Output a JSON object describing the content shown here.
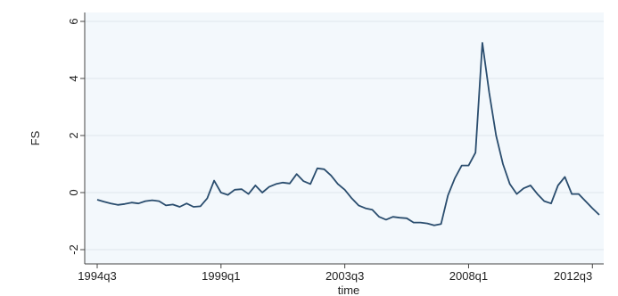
{
  "chart_data": {
    "type": "line",
    "title": "",
    "xlabel": "time",
    "ylabel": "FS",
    "ylim": [
      -2,
      6
    ],
    "yticks": [
      -2,
      0,
      2,
      4,
      6
    ],
    "xticks": [
      "1994q3",
      "1999q1",
      "2003q3",
      "2008q1",
      "2012q3"
    ],
    "grid": true,
    "line_color": "#2a4d6e",
    "plot_background": "#f3f8fc",
    "series": [
      {
        "x": [
          "1994q3",
          "1994q4",
          "1995q1",
          "1995q2",
          "1995q3",
          "1995q4",
          "1996q1",
          "1996q2",
          "1996q3",
          "1996q4",
          "1997q1",
          "1997q2",
          "1997q3",
          "1997q4",
          "1998q1",
          "1998q2",
          "1998q3",
          "1998q4",
          "1999q1",
          "1999q2",
          "1999q3",
          "1999q4",
          "2000q1",
          "2000q2",
          "2000q3",
          "2000q4",
          "2001q1",
          "2001q2",
          "2001q3",
          "2001q4",
          "2002q1",
          "2002q2",
          "2002q3",
          "2002q4",
          "2003q1",
          "2003q2",
          "2003q3",
          "2003q4",
          "2004q1",
          "2004q2",
          "2004q3",
          "2004q4",
          "2005q1",
          "2005q2",
          "2005q3",
          "2005q4",
          "2006q1",
          "2006q2",
          "2006q3",
          "2006q4",
          "2007q1",
          "2007q2",
          "2007q3",
          "2007q4",
          "2008q1",
          "2008q2",
          "2008q3",
          "2008q4",
          "2009q1",
          "2009q2",
          "2009q3",
          "2009q4",
          "2010q1",
          "2010q2",
          "2010q3",
          "2010q4",
          "2011q1",
          "2011q2",
          "2011q3",
          "2011q4",
          "2012q1",
          "2012q2",
          "2012q3",
          "2012q4"
        ],
        "values": [
          -0.25,
          -0.32,
          -0.38,
          -0.43,
          -0.4,
          -0.35,
          -0.38,
          -0.3,
          -0.27,
          -0.3,
          -0.45,
          -0.42,
          -0.5,
          -0.38,
          -0.5,
          -0.48,
          -0.2,
          0.42,
          0.0,
          -0.08,
          0.1,
          0.12,
          -0.05,
          0.25,
          0.0,
          0.2,
          0.3,
          0.35,
          0.32,
          0.65,
          0.4,
          0.3,
          0.85,
          0.82,
          0.6,
          0.3,
          0.1,
          -0.2,
          -0.45,
          -0.55,
          -0.6,
          -0.85,
          -0.95,
          -0.85,
          -0.88,
          -0.9,
          -1.05,
          -1.05,
          -1.08,
          -1.15,
          -1.1,
          -0.1,
          0.5,
          0.95,
          0.95,
          1.4,
          5.25,
          3.5,
          2.0,
          1.0,
          0.3,
          -0.05,
          0.15,
          0.25,
          -0.05,
          -0.3,
          -0.38,
          0.25,
          0.55,
          -0.05,
          -0.05,
          -0.3,
          -0.55,
          -0.78
        ]
      }
    ]
  }
}
